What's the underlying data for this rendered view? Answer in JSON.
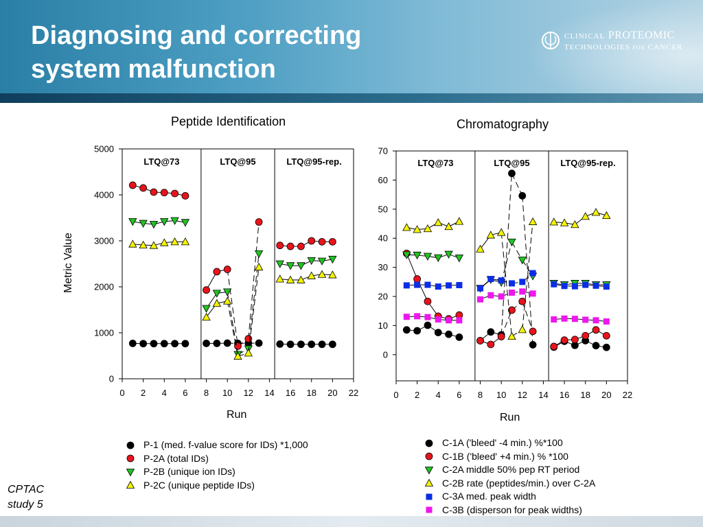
{
  "slide": {
    "title_lines": [
      "Diagnosing and correcting",
      "system malfunction"
    ],
    "logo": {
      "line1_small": "CLINICAL",
      "line1_big": "PROTEOMIC",
      "line2": "TECHNOLOGIES",
      "line2_small": "FOR",
      "line2_end": "CANCER"
    },
    "footnote_lines": [
      "CPTAC",
      "study 5"
    ],
    "colors": {
      "header": "#2a7fa6",
      "title_text": "#ffffff"
    }
  },
  "chart_data": [
    {
      "type": "scatter",
      "title": "Peptide Identification",
      "xlabel": "Run",
      "ylabel": "Metric Value",
      "xlim": [
        0,
        22
      ],
      "ylim": [
        0,
        5000
      ],
      "xticks": [
        0,
        2,
        4,
        6,
        8,
        10,
        12,
        14,
        16,
        18,
        20,
        22
      ],
      "yticks": [
        0,
        1000,
        2000,
        3000,
        4000,
        5000
      ],
      "dividers": [
        7.5,
        14.5
      ],
      "sections": [
        "LTQ@73",
        "LTQ@95",
        "LTQ@95-rep."
      ],
      "series": [
        {
          "name": "P-1 (med. f-value score for IDs) *1,000",
          "marker": "circle",
          "color": "#000000",
          "x": [
            1,
            2,
            3,
            4,
            5,
            6,
            8,
            9,
            10,
            11,
            12,
            13,
            15,
            16,
            17,
            18,
            19,
            20
          ],
          "y": [
            770,
            765,
            765,
            765,
            765,
            765,
            770,
            770,
            775,
            770,
            775,
            775,
            755,
            750,
            750,
            750,
            750,
            750
          ]
        },
        {
          "name": "P-2A (total IDs)",
          "marker": "circle",
          "color": "#e8141c",
          "x": [
            1,
            2,
            3,
            4,
            5,
            6,
            8,
            9,
            10,
            11,
            12,
            13,
            15,
            16,
            17,
            18,
            19,
            20
          ],
          "y": [
            4210,
            4150,
            4060,
            4050,
            4030,
            3980,
            1930,
            2330,
            2380,
            710,
            870,
            3410,
            2900,
            2880,
            2880,
            3000,
            2980,
            2980
          ]
        },
        {
          "name": "P-2B (unique ion IDs)",
          "marker": "triangle-down",
          "color": "#22c322",
          "x": [
            1,
            2,
            3,
            4,
            5,
            6,
            8,
            9,
            10,
            11,
            12,
            13,
            15,
            16,
            17,
            18,
            19,
            20
          ],
          "y": [
            3420,
            3380,
            3360,
            3420,
            3440,
            3400,
            1530,
            1860,
            1890,
            530,
            650,
            2720,
            2500,
            2460,
            2460,
            2570,
            2560,
            2600
          ]
        },
        {
          "name": "P-2C (unique peptide IDs)",
          "marker": "triangle-up",
          "color": "#f4f400",
          "x": [
            1,
            2,
            3,
            4,
            5,
            6,
            8,
            9,
            10,
            11,
            12,
            13,
            15,
            16,
            17,
            18,
            19,
            20
          ],
          "y": [
            2930,
            2910,
            2900,
            2960,
            2980,
            2980,
            1340,
            1640,
            1690,
            490,
            560,
            2430,
            2170,
            2150,
            2150,
            2240,
            2270,
            2260
          ]
        }
      ]
    },
    {
      "type": "scatter",
      "title": "Chromatography",
      "xlabel": "Run",
      "ylabel": "",
      "xlim": [
        0,
        22
      ],
      "ylim": [
        -9,
        70
      ],
      "xticks": [
        0,
        2,
        4,
        6,
        8,
        10,
        12,
        14,
        16,
        18,
        20,
        22
      ],
      "yticks": [
        0,
        10,
        20,
        30,
        40,
        50,
        60,
        70
      ],
      "dividers": [
        7.5,
        14.5
      ],
      "sections": [
        "LTQ@73",
        "LTQ@95",
        "LTQ@95-rep."
      ],
      "series": [
        {
          "name": "C-1A ('bleed' -4 min.) %*100",
          "marker": "circle",
          "color": "#000000",
          "x": [
            1,
            2,
            3,
            4,
            5,
            6,
            8,
            9,
            10,
            11,
            12,
            13,
            15,
            16,
            17,
            18,
            19,
            20
          ],
          "y": [
            8.5,
            8.2,
            10.1,
            7.6,
            7,
            6,
            4.8,
            7.8,
            6.8,
            62.3,
            54.6,
            3.4,
            2.6,
            4.6,
            3.2,
            4.8,
            3.1,
            2.5
          ]
        },
        {
          "name": "C-1B ('bleed' +4 min.) % *100",
          "marker": "circle",
          "color": "#e8141c",
          "x": [
            1,
            2,
            3,
            4,
            5,
            6,
            8,
            9,
            10,
            11,
            12,
            13,
            15,
            16,
            17,
            18,
            19,
            20
          ],
          "y": [
            34.8,
            26,
            18.3,
            13.2,
            12.3,
            13.6,
            4.8,
            3.5,
            6.2,
            15.3,
            18.3,
            8,
            2.8,
            5,
            5.2,
            6.5,
            8.5,
            6.5
          ]
        },
        {
          "name": "C-2A middle 50% pep RT period",
          "marker": "triangle-down",
          "color": "#22c322",
          "x": [
            1,
            2,
            3,
            4,
            5,
            6,
            8,
            9,
            10,
            11,
            12,
            13,
            15,
            16,
            17,
            18,
            19,
            20
          ],
          "y": [
            34.3,
            34.2,
            33.8,
            33.3,
            34.5,
            33.2,
            22.8,
            25.8,
            24.8,
            38.7,
            32.5,
            27,
            24.5,
            24,
            24.5,
            24.5,
            24,
            24
          ]
        },
        {
          "name": "C-2B rate (peptides/min.) over C-2A",
          "marker": "triangle-up",
          "color": "#f4f400",
          "x": [
            1,
            2,
            3,
            4,
            5,
            6,
            8,
            9,
            10,
            11,
            12,
            13,
            15,
            16,
            17,
            18,
            19,
            20
          ],
          "y": [
            43.7,
            43,
            43.3,
            45.4,
            44,
            45.8,
            36.3,
            41.1,
            42,
            6.3,
            8.6,
            45.7,
            45.6,
            45.3,
            44.7,
            47.5,
            48.9,
            47.8
          ]
        },
        {
          "name": "C-3A med. peak width",
          "marker": "square",
          "color": "#0a2de6",
          "x": [
            1,
            2,
            3,
            4,
            5,
            6,
            8,
            9,
            10,
            11,
            12,
            13,
            15,
            16,
            17,
            18,
            19,
            20
          ],
          "y": [
            23.8,
            24,
            24,
            23.4,
            23.8,
            23.9,
            22.8,
            26,
            25.5,
            24.5,
            25,
            28,
            24.2,
            23.6,
            23.5,
            24,
            23.7,
            23.4
          ]
        },
        {
          "name": "C-3B (disperson for peak widths)",
          "marker": "square",
          "color": "#ee17ee",
          "x": [
            1,
            2,
            3,
            4,
            5,
            6,
            8,
            9,
            10,
            11,
            12,
            13,
            15,
            16,
            17,
            18,
            19,
            20
          ],
          "y": [
            13,
            13.2,
            12.9,
            12.1,
            11.8,
            11.8,
            19,
            20.4,
            20,
            21.3,
            21.7,
            21,
            12.1,
            12.4,
            12.3,
            12,
            11.8,
            11.4
          ]
        }
      ]
    }
  ]
}
